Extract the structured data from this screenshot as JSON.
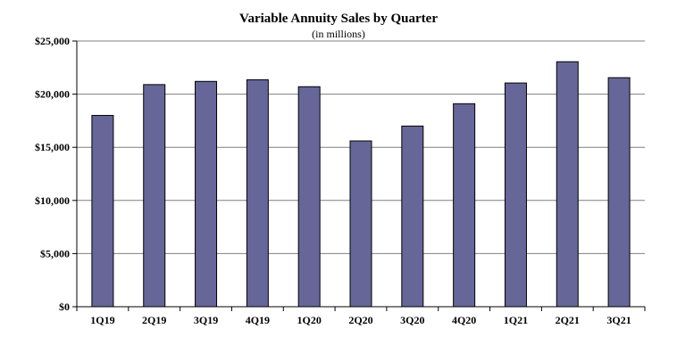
{
  "chart_data": {
    "type": "bar",
    "title": "Variable Annuity Sales by Quarter",
    "subtitle": "(in millions)",
    "categories": [
      "1Q19",
      "2Q19",
      "3Q19",
      "4Q19",
      "1Q20",
      "2Q20",
      "3Q20",
      "4Q20",
      "1Q21",
      "2Q21",
      "3Q21"
    ],
    "values": [
      18000,
      20900,
      21200,
      21350,
      20700,
      15600,
      17000,
      19100,
      21050,
      23050,
      21550
    ],
    "ylim": [
      0,
      25000
    ],
    "yticks": [
      0,
      5000,
      10000,
      15000,
      20000,
      25000
    ],
    "ytick_labels": [
      "$0",
      "$5,000",
      "$10,000",
      "$15,000",
      "$20,000",
      "$25,000"
    ],
    "grid": true,
    "bar_color": "#666699",
    "bar_edge_color": "#000000"
  }
}
